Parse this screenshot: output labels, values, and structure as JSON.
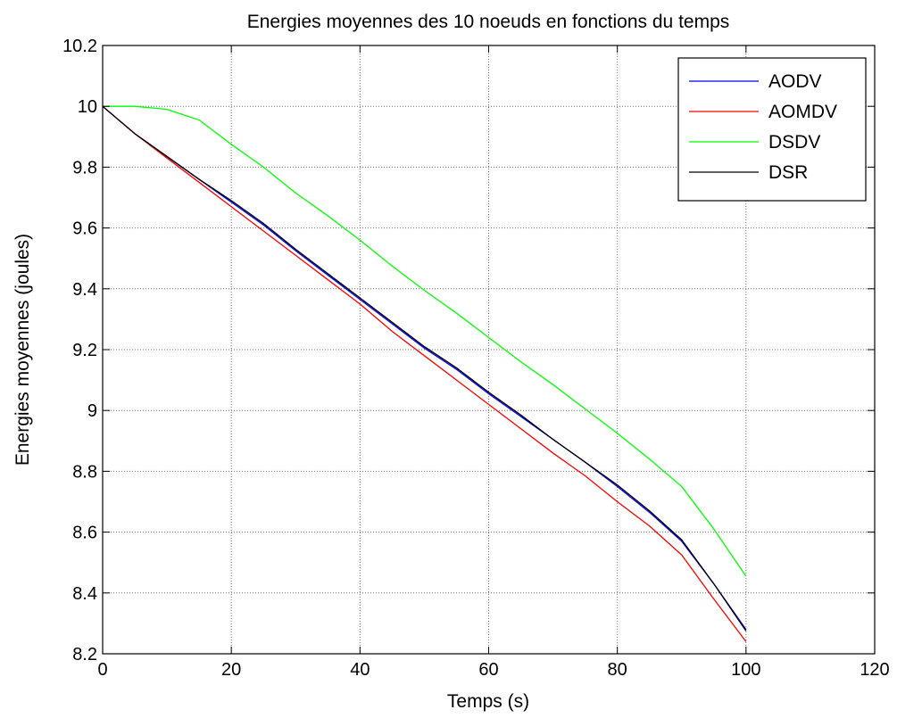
{
  "chart_data": {
    "type": "line",
    "title": "Energies moyennes des 10 noeuds en fonctions du temps",
    "xlabel": "Temps (s)",
    "ylabel": "Energies moyennes (joules)",
    "xlim": [
      0,
      120
    ],
    "ylim": [
      8.2,
      10.2
    ],
    "xticks": [
      0,
      20,
      40,
      60,
      80,
      100,
      120
    ],
    "xtick_labels": [
      "0",
      "20",
      "40",
      "60",
      "80",
      "100",
      "120"
    ],
    "yticks": [
      8.2,
      8.4,
      8.6,
      8.8,
      9.0,
      9.2,
      9.4,
      9.6,
      9.8,
      10.0,
      10.2
    ],
    "ytick_labels": [
      "8.2",
      "8.4",
      "8.6",
      "8.8",
      "9",
      "9.2",
      "9.4",
      "9.6",
      "9.8",
      "10",
      "10.2"
    ],
    "grid": true,
    "legend_position": "top-right",
    "series": [
      {
        "name": "AODV",
        "color": "#0000ff",
        "x": [
          0,
          5,
          10,
          15,
          20,
          25,
          30,
          35,
          40,
          45,
          50,
          55,
          60,
          65,
          70,
          75,
          80,
          85,
          90,
          95,
          100
        ],
        "y": [
          10.0,
          9.91,
          9.835,
          9.76,
          9.685,
          9.61,
          9.525,
          9.445,
          9.365,
          9.285,
          9.205,
          9.135,
          9.055,
          8.98,
          8.905,
          8.83,
          8.75,
          8.665,
          8.57,
          8.43,
          8.28
        ]
      },
      {
        "name": "AOMDV",
        "color": "#ff0000",
        "x": [
          0,
          5,
          10,
          15,
          20,
          25,
          30,
          35,
          40,
          45,
          50,
          55,
          60,
          65,
          70,
          75,
          80,
          85,
          90,
          95,
          100
        ],
        "y": [
          10.0,
          9.91,
          9.83,
          9.75,
          9.67,
          9.59,
          9.51,
          9.43,
          9.35,
          9.26,
          9.18,
          9.1,
          9.02,
          8.94,
          8.86,
          8.785,
          8.7,
          8.62,
          8.525,
          8.38,
          8.24
        ]
      },
      {
        "name": "DSDV",
        "color": "#00ff00",
        "x": [
          0,
          5,
          10,
          15,
          20,
          25,
          30,
          35,
          40,
          45,
          50,
          55,
          60,
          65,
          70,
          75,
          80,
          85,
          90,
          95,
          100
        ],
        "y": [
          10.0,
          10.0,
          9.99,
          9.955,
          9.875,
          9.8,
          9.715,
          9.64,
          9.56,
          9.475,
          9.395,
          9.32,
          9.24,
          9.16,
          9.085,
          9.005,
          8.925,
          8.84,
          8.75,
          8.61,
          8.455
        ]
      },
      {
        "name": "DSR",
        "color": "#000000",
        "x": [
          0,
          5,
          10,
          15,
          20,
          25,
          30,
          35,
          40,
          45,
          50,
          55,
          60,
          65,
          70,
          75,
          80,
          85,
          90,
          95,
          100
        ],
        "y": [
          10.0,
          9.91,
          9.835,
          9.76,
          9.69,
          9.615,
          9.53,
          9.45,
          9.37,
          9.29,
          9.21,
          9.14,
          9.06,
          8.985,
          8.905,
          8.83,
          8.755,
          8.67,
          8.575,
          8.43,
          8.275
        ]
      }
    ]
  }
}
